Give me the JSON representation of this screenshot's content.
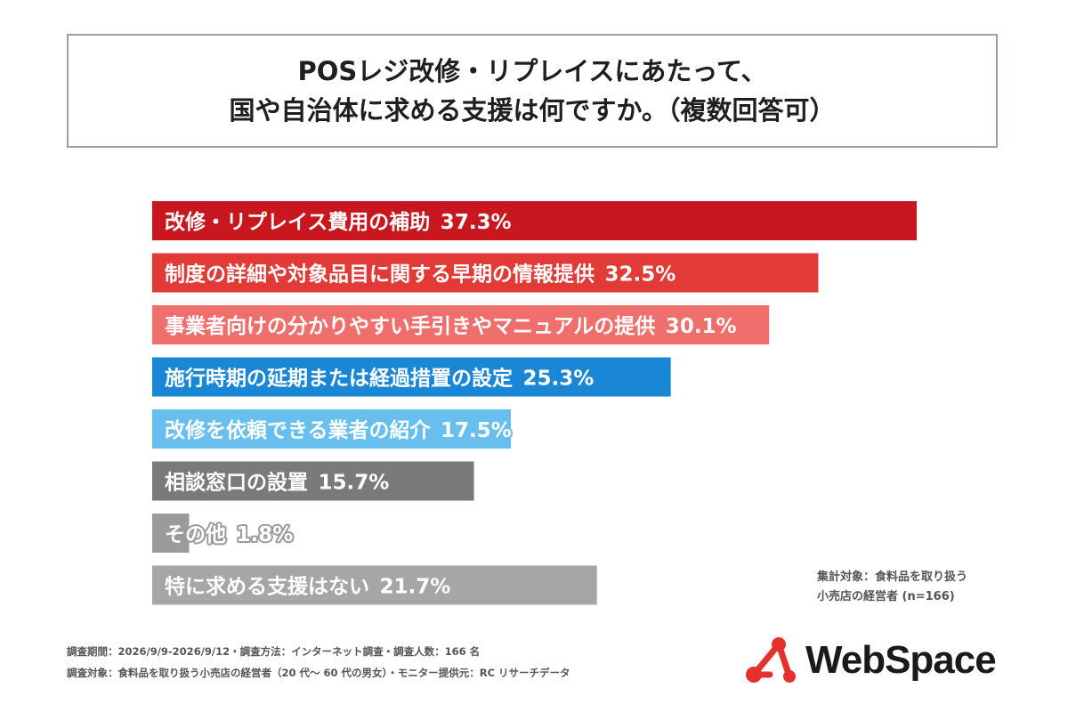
{
  "title": {
    "line1": "POSレジ改修・リプレイスにあたって、",
    "line2": "国や自治体に求める支援は何ですか。（複数回答可）"
  },
  "chart_data": {
    "type": "bar",
    "orientation": "horizontal",
    "categories": [
      "改修・リプレイス費用の補助",
      "制度の詳細や対象品目に関する早期の情報提供",
      "事業者向けの分かりやすい手引きやマニュアルの提供",
      "施行時期の延期または経過措置の設定",
      "改修を依頼できる業者の紹介",
      "相談窓口の設置",
      "その他",
      "特に求める支援はない"
    ],
    "values": [
      37.3,
      32.5,
      30.1,
      25.3,
      17.5,
      15.7,
      1.8,
      21.7
    ],
    "value_labels": [
      "37.3%",
      "32.5%",
      "30.1%",
      "25.3%",
      "17.5%",
      "15.7%",
      "1.8%",
      "21.7%"
    ],
    "colors": [
      "#c8171e",
      "#e23a36",
      "#ef6f6d",
      "#1a86d6",
      "#68bfee",
      "#7a7a7a",
      "#9b9b9b",
      "#a6a6a6"
    ],
    "label_outline_colors": [
      "#c8171e",
      "#e23a36",
      "#ef6f6d",
      "#1a86d6",
      "#68bfee",
      "#7a7a7a",
      "#9b9b9b",
      "#a6a6a6"
    ],
    "xlim": [
      0,
      37.3
    ],
    "grid": false,
    "legend": "none"
  },
  "note": {
    "line1": "集計対象：食料品を取り扱う",
    "line2": "小売店の経営者 (n=166)"
  },
  "footer": {
    "line1": "調査期間：2026/9/9-2026/9/12・調査方法：インターネット調査・調査人数：166 名",
    "line2": "調査対象：食料品を取り扱う小売店の経営者（20 代～ 60 代の男女）・モニター提供元：RC リサーチデータ"
  },
  "logo": {
    "text": "WebSpace",
    "color": "#e5312d"
  }
}
